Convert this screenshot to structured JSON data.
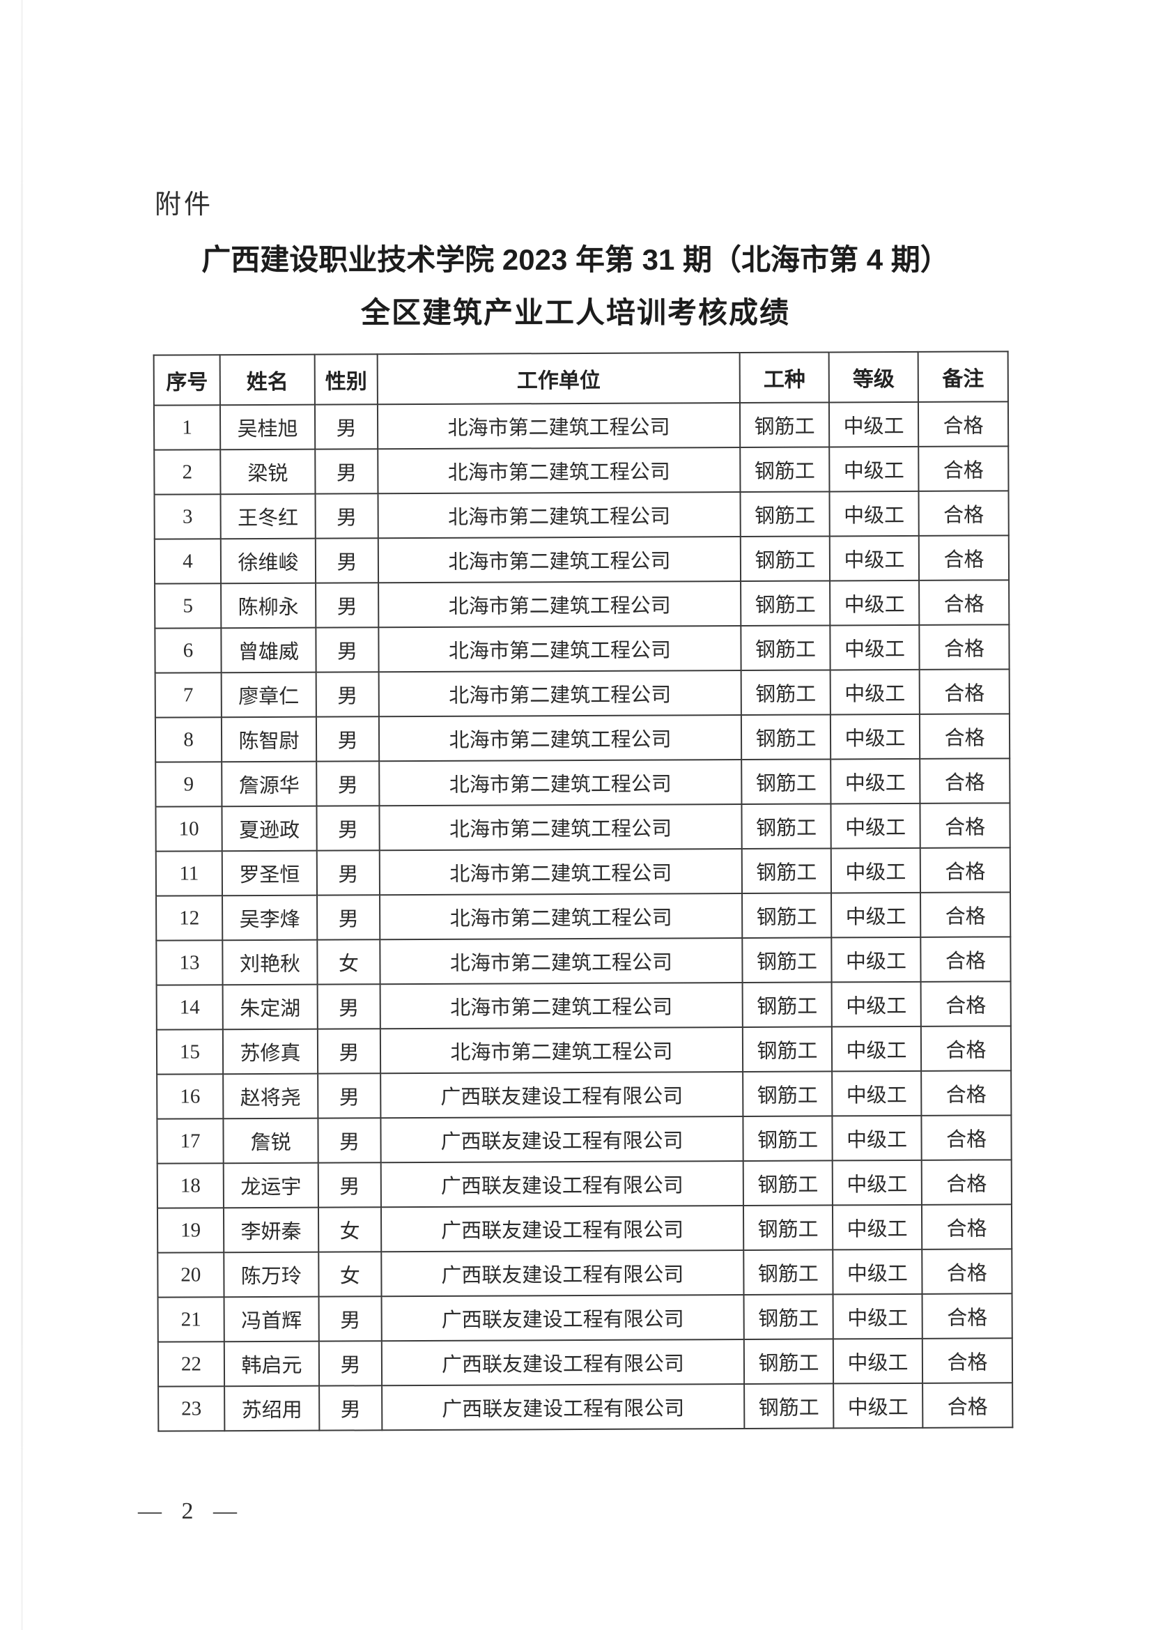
{
  "page": {
    "attachment_label": "附件",
    "page_number": "— 2 —"
  },
  "title": {
    "line1": "广西建设职业技术学院 2023 年第 31 期（北海市第 4 期）",
    "line2": "全区建筑产业工人培训考核成绩"
  },
  "table": {
    "headers": [
      "序号",
      "姓名",
      "性别",
      "工作单位",
      "工种",
      "等级",
      "备注"
    ],
    "rows": [
      [
        "1",
        "吴桂旭",
        "男",
        "北海市第二建筑工程公司",
        "钢筋工",
        "中级工",
        "合格"
      ],
      [
        "2",
        "梁锐",
        "男",
        "北海市第二建筑工程公司",
        "钢筋工",
        "中级工",
        "合格"
      ],
      [
        "3",
        "王冬红",
        "男",
        "北海市第二建筑工程公司",
        "钢筋工",
        "中级工",
        "合格"
      ],
      [
        "4",
        "徐维峻",
        "男",
        "北海市第二建筑工程公司",
        "钢筋工",
        "中级工",
        "合格"
      ],
      [
        "5",
        "陈柳永",
        "男",
        "北海市第二建筑工程公司",
        "钢筋工",
        "中级工",
        "合格"
      ],
      [
        "6",
        "曾雄威",
        "男",
        "北海市第二建筑工程公司",
        "钢筋工",
        "中级工",
        "合格"
      ],
      [
        "7",
        "廖章仁",
        "男",
        "北海市第二建筑工程公司",
        "钢筋工",
        "中级工",
        "合格"
      ],
      [
        "8",
        "陈智尉",
        "男",
        "北海市第二建筑工程公司",
        "钢筋工",
        "中级工",
        "合格"
      ],
      [
        "9",
        "詹源华",
        "男",
        "北海市第二建筑工程公司",
        "钢筋工",
        "中级工",
        "合格"
      ],
      [
        "10",
        "夏逊政",
        "男",
        "北海市第二建筑工程公司",
        "钢筋工",
        "中级工",
        "合格"
      ],
      [
        "11",
        "罗圣恒",
        "男",
        "北海市第二建筑工程公司",
        "钢筋工",
        "中级工",
        "合格"
      ],
      [
        "12",
        "吴李烽",
        "男",
        "北海市第二建筑工程公司",
        "钢筋工",
        "中级工",
        "合格"
      ],
      [
        "13",
        "刘艳秋",
        "女",
        "北海市第二建筑工程公司",
        "钢筋工",
        "中级工",
        "合格"
      ],
      [
        "14",
        "朱定湖",
        "男",
        "北海市第二建筑工程公司",
        "钢筋工",
        "中级工",
        "合格"
      ],
      [
        "15",
        "苏修真",
        "男",
        "北海市第二建筑工程公司",
        "钢筋工",
        "中级工",
        "合格"
      ],
      [
        "16",
        "赵将尧",
        "男",
        "广西联友建设工程有限公司",
        "钢筋工",
        "中级工",
        "合格"
      ],
      [
        "17",
        "詹锐",
        "男",
        "广西联友建设工程有限公司",
        "钢筋工",
        "中级工",
        "合格"
      ],
      [
        "18",
        "龙运宇",
        "男",
        "广西联友建设工程有限公司",
        "钢筋工",
        "中级工",
        "合格"
      ],
      [
        "19",
        "李妍秦",
        "女",
        "广西联友建设工程有限公司",
        "钢筋工",
        "中级工",
        "合格"
      ],
      [
        "20",
        "陈万玲",
        "女",
        "广西联友建设工程有限公司",
        "钢筋工",
        "中级工",
        "合格"
      ],
      [
        "21",
        "冯首辉",
        "男",
        "广西联友建设工程有限公司",
        "钢筋工",
        "中级工",
        "合格"
      ],
      [
        "22",
        "韩启元",
        "男",
        "广西联友建设工程有限公司",
        "钢筋工",
        "中级工",
        "合格"
      ],
      [
        "23",
        "苏绍用",
        "男",
        "广西联友建设工程有限公司",
        "钢筋工",
        "中级工",
        "合格"
      ]
    ]
  }
}
